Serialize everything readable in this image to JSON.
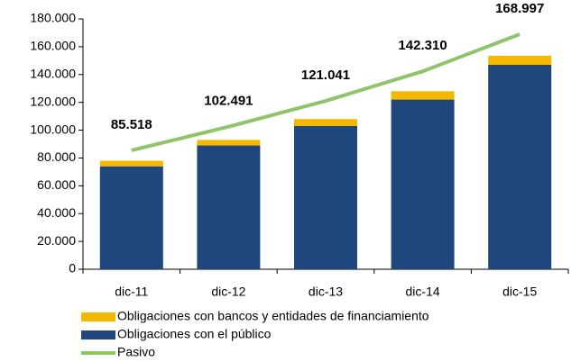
{
  "chart_data": {
    "type": "bar",
    "categories": [
      "dic-11",
      "dic-12",
      "dic-13",
      "dic-14",
      "dic-15"
    ],
    "series": [
      {
        "name": "Obligaciones con bancos y entidades de financiamiento",
        "type": "bar",
        "color": "#f5b800",
        "values": [
          4000,
          4000,
          5000,
          6000,
          6500
        ]
      },
      {
        "name": "Obligaciones con el público",
        "type": "bar",
        "color": "#1f477d",
        "values": [
          74000,
          89000,
          103000,
          122000,
          147000
        ]
      },
      {
        "name": "Pasivo",
        "type": "line",
        "color": "#8fc46a",
        "values": [
          85518,
          102491,
          121041,
          142310,
          168997
        ],
        "value_labels": [
          "85.518",
          "102.491",
          "121.041",
          "142.310",
          "168.997"
        ]
      }
    ],
    "ylim": [
      0,
      180000
    ],
    "yticks": [
      0,
      {
        "value": 20000,
        "label": "20.000"
      },
      {
        "value": 40000,
        "label": "40.000"
      },
      {
        "value": 60000,
        "label": "60.000"
      },
      {
        "value": 80000,
        "label": "80.000"
      },
      {
        "value": 100000,
        "label": "100.000"
      },
      {
        "value": 120000,
        "label": "120.000"
      },
      {
        "value": 140000,
        "label": "140.000"
      },
      {
        "value": 160000,
        "label": "160.000"
      },
      {
        "value": 180000,
        "label": "180.000"
      }
    ],
    "legend": "bottom"
  }
}
